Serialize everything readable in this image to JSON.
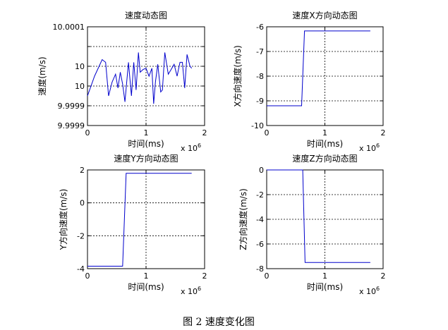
{
  "figure": {
    "caption": "图 2  速度变化图",
    "x_exponent_base": "x 10",
    "x_exponent_power": "6"
  },
  "chart_data": [
    {
      "type": "line",
      "title": "速度动态图",
      "xlabel": "时间(ms)",
      "ylabel": "速度(m/s)",
      "xlim": [
        0,
        2000000
      ],
      "ylim": [
        9.99985,
        10.0001
      ],
      "xticks": [
        0,
        1000000,
        2000000
      ],
      "xtick_labels": [
        "0",
        "1",
        "2"
      ],
      "yticks": [
        9.99985,
        9.9999,
        9.99995,
        10.0,
        10.00005,
        10.0001
      ],
      "ytick_labels": [
        "9.9999",
        "9.9999",
        "10",
        "10",
        "10.0001"
      ],
      "ytick_label_positions": [
        9.99985,
        9.9999,
        9.99995,
        10.0,
        10.0001
      ],
      "grid": true,
      "color": "#0000cc",
      "x": [
        0,
        120000,
        250000,
        310000,
        360000,
        420000,
        480000,
        520000,
        560000,
        600000,
        640000,
        700000,
        750000,
        790000,
        830000,
        870000,
        900000,
        950000,
        1000000,
        1050000,
        1100000,
        1130000,
        1160000,
        1200000,
        1250000,
        1280000,
        1320000,
        1380000,
        1420000,
        1480000,
        1530000,
        1580000,
        1620000,
        1660000,
        1700000,
        1750000,
        1780000
      ],
      "y": [
        9.999925,
        9.999975,
        10.000017,
        10.00001,
        9.999925,
        9.99996,
        9.99998,
        9.999945,
        9.999985,
        9.999955,
        9.99991,
        10.00001,
        9.999925,
        10.00001,
        9.99994,
        10.000035,
        9.999985,
        9.999992,
        9.999995,
        9.999975,
        9.999995,
        9.999905,
        9.99996,
        10.000005,
        9.999935,
        9.99994,
        10.000035,
        9.99998,
        9.99999,
        10.000005,
        9.999975,
        10.00001,
        10.00001,
        9.999945,
        10.00003,
        10.0,
        9.999995
      ]
    },
    {
      "type": "line",
      "title": "速度X方向动态图",
      "xlabel": "时间(ms)",
      "ylabel": "X方向速度(m/s)",
      "xlim": [
        0,
        2000000
      ],
      "ylim": [
        -10,
        -6
      ],
      "xticks": [
        0,
        1000000,
        2000000
      ],
      "xtick_labels": [
        "0",
        "1",
        "2"
      ],
      "yticks": [
        -10,
        -9,
        -8,
        -7,
        -6
      ],
      "ytick_labels": [
        "-10",
        "-9",
        "-8",
        "-7",
        "-6"
      ],
      "ytick_label_positions": [
        -10,
        -9,
        -8,
        -7,
        -6
      ],
      "grid": true,
      "color": "#0000cc",
      "x": [
        0,
        600000,
        650000,
        1780000
      ],
      "y": [
        -9.2,
        -9.2,
        -6.17,
        -6.17
      ]
    },
    {
      "type": "line",
      "title": "速度Y方向动态图",
      "xlabel": "时间(ms)",
      "ylabel": "Y方向速度(m/s)",
      "xlim": [
        0,
        2000000
      ],
      "ylim": [
        -4,
        2
      ],
      "xticks": [
        0,
        1000000,
        2000000
      ],
      "xtick_labels": [
        "0",
        "1",
        "2"
      ],
      "yticks": [
        -4,
        -2,
        0,
        2
      ],
      "ytick_labels": [
        "-4",
        "-2",
        "0",
        "2"
      ],
      "ytick_label_positions": [
        -4,
        -2,
        0,
        2
      ],
      "grid": true,
      "color": "#0000cc",
      "x": [
        0,
        600000,
        660000,
        1780000
      ],
      "y": [
        -3.85,
        -3.85,
        1.8,
        1.8
      ]
    },
    {
      "type": "line",
      "title": "速度Z方向动态图",
      "xlabel": "时间(ms)",
      "ylabel": "Z方向速度(m/s)",
      "xlim": [
        0,
        2000000
      ],
      "ylim": [
        -8,
        0
      ],
      "xticks": [
        0,
        1000000,
        2000000
      ],
      "xtick_labels": [
        "0",
        "1",
        "2"
      ],
      "yticks": [
        -8,
        -6,
        -4,
        -2,
        0
      ],
      "ytick_labels": [
        "-8",
        "-6",
        "-4",
        "-2",
        "0"
      ],
      "ytick_label_positions": [
        -8,
        -6,
        -4,
        -2,
        0
      ],
      "grid": true,
      "color": "#0000cc",
      "x": [
        0,
        620000,
        660000,
        1780000
      ],
      "y": [
        0,
        0,
        -7.5,
        -7.5
      ]
    }
  ]
}
